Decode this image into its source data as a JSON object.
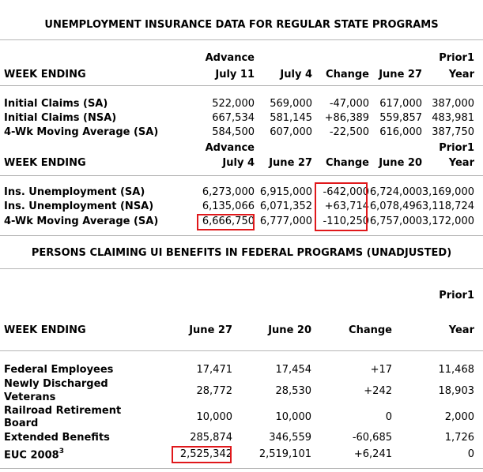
{
  "regular": {
    "title": "UNEMPLOYMENT INSURANCE DATA FOR REGULAR STATE PROGRAMS",
    "section1": {
      "header": {
        "week_ending": "WEEK ENDING",
        "advance_line1": "Advance",
        "col1": "July 11",
        "col2": "July 4",
        "col3": "Change",
        "col4": "June 27",
        "prior1_line1": "Prior1",
        "col5": "Year"
      },
      "rows": [
        {
          "label": "Initial Claims (SA)",
          "c1": "522,000",
          "c2": "569,000",
          "c3": "-47,000",
          "c4": "617,000",
          "c5": "387,000"
        },
        {
          "label": "Initial Claims (NSA)",
          "c1": "667,534",
          "c2": "581,145",
          "c3": "+86,389",
          "c4": "559,857",
          "c5": "483,981"
        },
        {
          "label": "4-Wk Moving Average (SA)",
          "c1": "584,500",
          "c2": "607,000",
          "c3": "-22,500",
          "c4": "616,000",
          "c5": "387,750"
        }
      ]
    },
    "section2": {
      "header": {
        "week_ending": "WEEK ENDING",
        "advance_line1": "Advance",
        "col1": "July 4",
        "col2": "June 27",
        "col3": "Change",
        "col4": "June 20",
        "prior1_line1": "Prior1",
        "col5": "Year"
      },
      "rows": [
        {
          "label": "Ins. Unemployment (SA)",
          "c1": "6,273,000",
          "c2": "6,915,000",
          "c3": "-642,000",
          "c4": "6,724,000",
          "c5": "3,169,000"
        },
        {
          "label": "Ins. Unemployment (NSA)",
          "c1": "6,135,066",
          "c2": "6,071,352",
          "c3": "+63,714",
          "c4": "6,078,496",
          "c5": "3,118,724"
        },
        {
          "label": "4-Wk Moving Average (SA)",
          "c1": "6,666,750",
          "c2": "6,777,000",
          "c3": "-110,250",
          "c4": "6,757,000",
          "c5": "3,172,000"
        }
      ]
    }
  },
  "federal": {
    "title": "PERSONS CLAIMING UI BENEFITS IN FEDERAL PROGRAMS (UNADJUSTED)",
    "header": {
      "prior1_line1": "Prior1",
      "week_ending": "WEEK ENDING",
      "col1": "June 27",
      "col2": "June 20",
      "col3": "Change",
      "col4": "Year"
    },
    "rows": [
      {
        "label": "Federal Employees",
        "c1": "17,471",
        "c2": "17,454",
        "c3": "+17",
        "c4": "11,468"
      },
      {
        "label_line1": "Newly Discharged",
        "label_line2": "Veterans",
        "c1": "28,772",
        "c2": "28,530",
        "c3": "+242",
        "c4": "18,903"
      },
      {
        "label_line1": "Railroad Retirement",
        "label_line2": "Board",
        "c1": "10,000",
        "c2": "10,000",
        "c3": "0",
        "c4": "2,000"
      },
      {
        "label": "Extended Benefits",
        "c1": "285,874",
        "c2": "346,559",
        "c3": "-60,685",
        "c4": "1,726"
      },
      {
        "label": "EUC 2008",
        "label_sup": "3",
        "c1": "2,525,342",
        "c2": "2,519,101",
        "c3": "+6,241",
        "c4": "0"
      }
    ]
  },
  "highlight_color": "#e0181b"
}
